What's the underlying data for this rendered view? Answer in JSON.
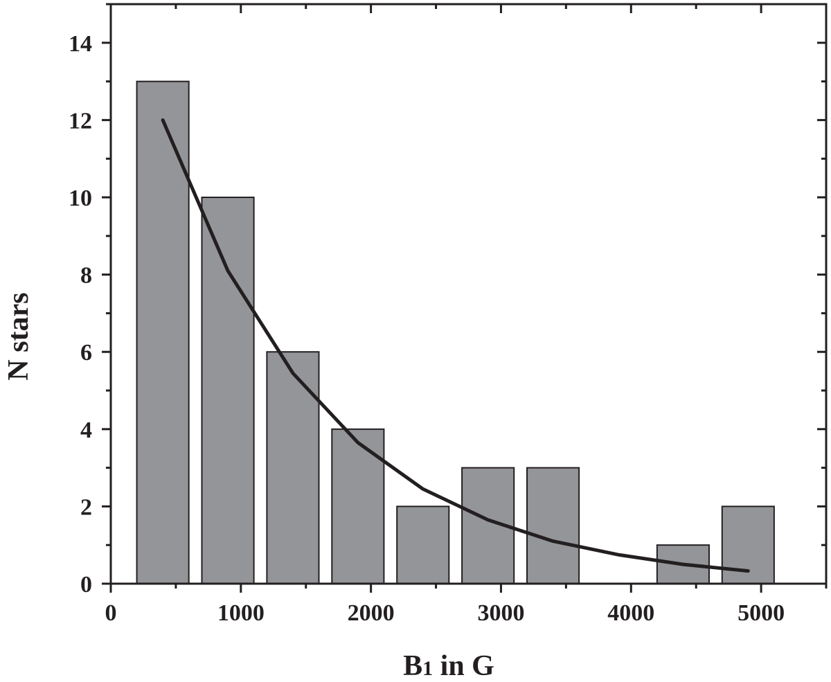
{
  "chart_data": {
    "type": "bar",
    "xlabel_main": "B",
    "xlabel_sub": "1",
    "xlabel_rest": " in G",
    "ylabel": "N stars",
    "xlim": [
      0,
      5500
    ],
    "ylim": [
      0,
      15
    ],
    "xticks": [
      0,
      1000,
      2000,
      3000,
      4000,
      5000
    ],
    "yticks": [
      0,
      2,
      4,
      6,
      8,
      10,
      12,
      14
    ],
    "bin_width": 500,
    "bars": [
      {
        "x": 400,
        "value": 13
      },
      {
        "x": 900,
        "value": 10
      },
      {
        "x": 1400,
        "value": 6
      },
      {
        "x": 1900,
        "value": 4
      },
      {
        "x": 2400,
        "value": 2
      },
      {
        "x": 2900,
        "value": 3
      },
      {
        "x": 3400,
        "value": 3
      },
      {
        "x": 4400,
        "value": 1
      },
      {
        "x": 4900,
        "value": 2
      }
    ],
    "series": [
      {
        "type": "line",
        "x": [
          400,
          900,
          1400,
          1900,
          2400,
          2900,
          3400,
          3900,
          4400,
          4900
        ],
        "y": [
          12.0,
          8.1,
          5.45,
          3.65,
          2.45,
          1.65,
          1.1,
          0.75,
          0.5,
          0.33
        ]
      }
    ],
    "colors": {
      "bar_fill": "#939598",
      "bar_stroke": "#231f20",
      "line": "#231f20",
      "axis": "#231f20"
    }
  }
}
